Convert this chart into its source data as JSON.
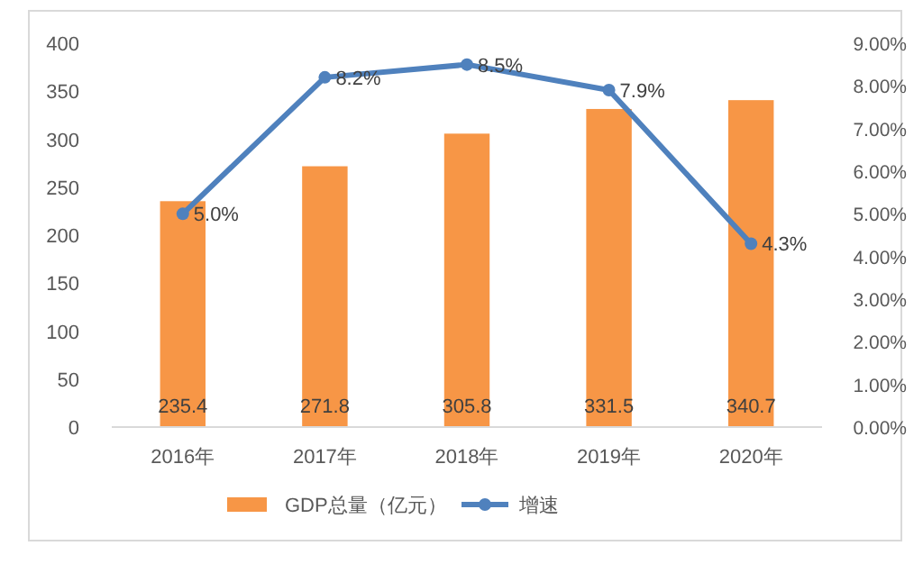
{
  "chart_data": {
    "type": "bar",
    "categories": [
      "2016年",
      "2017年",
      "2018年",
      "2019年",
      "2020年"
    ],
    "series": [
      {
        "name": "GDP总量（亿元）",
        "color": "#f79646",
        "values": [
          235.4,
          271.8,
          305.8,
          331.5,
          340.7
        ],
        "value_labels": [
          "235.4",
          "271.8",
          "305.8",
          "331.5",
          "340.7"
        ]
      },
      {
        "name": "增速",
        "type": "line",
        "axis": "y2",
        "color": "#4f81bd",
        "values": [
          5.0,
          8.2,
          8.5,
          7.9,
          4.3
        ],
        "value_labels": [
          "5.0%",
          "8.2%",
          "8.5%",
          "7.9%",
          "4.3%"
        ],
        "marker": "circle"
      }
    ],
    "ylim": [
      0,
      400
    ],
    "yticks": [
      0,
      50,
      100,
      150,
      200,
      250,
      300,
      350,
      400
    ],
    "y2lim": [
      0,
      9
    ],
    "y2ticks": [
      {
        "value": 0,
        "label": "0.00%"
      },
      {
        "value": 1,
        "label": "1.00%"
      },
      {
        "value": 2,
        "label": "2.00%"
      },
      {
        "value": 3,
        "label": "3.00%"
      },
      {
        "value": 4,
        "label": "4.00%"
      },
      {
        "value": 5,
        "label": "5.00%"
      },
      {
        "value": 6,
        "label": "6.00%"
      },
      {
        "value": 7,
        "label": "7.00%"
      },
      {
        "value": 8,
        "label": "8.00%"
      },
      {
        "value": 9,
        "label": "9.00%"
      }
    ],
    "legend": "bottom",
    "grid": false
  }
}
